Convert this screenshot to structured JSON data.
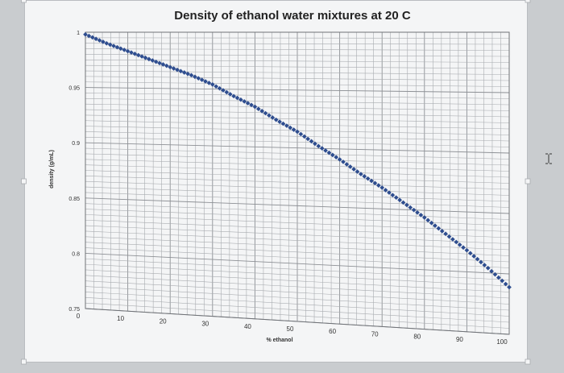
{
  "chart_data": {
    "type": "scatter",
    "title": "Density of ethanol water mixtures at 20 C",
    "xlabel": "% ethanol",
    "ylabel": "density (g/mL)",
    "xlim": [
      0,
      100
    ],
    "ylim": [
      0.75,
      1.0
    ],
    "x_ticks": [
      "0",
      "10",
      "20",
      "30",
      "40",
      "50",
      "60",
      "70",
      "80",
      "90",
      "100"
    ],
    "y_ticks": [
      "0.75",
      "0.8",
      "0.85",
      "0.9",
      "0.95",
      "1"
    ],
    "grid": true,
    "legend": "none",
    "marker_color": "#2e4d8f",
    "series": [
      {
        "x": [
          0,
          5,
          10,
          15,
          20,
          25,
          30,
          35,
          40,
          45,
          50,
          55,
          60,
          65,
          70,
          75,
          80,
          85,
          90,
          95,
          100
        ],
        "y": [
          0.998,
          0.99,
          0.983,
          0.976,
          0.969,
          0.962,
          0.954,
          0.944,
          0.935,
          0.924,
          0.914,
          0.902,
          0.891,
          0.879,
          0.868,
          0.856,
          0.844,
          0.831,
          0.818,
          0.804,
          0.789
        ]
      }
    ]
  },
  "cursor": {
    "icon": "text-cursor-icon"
  }
}
